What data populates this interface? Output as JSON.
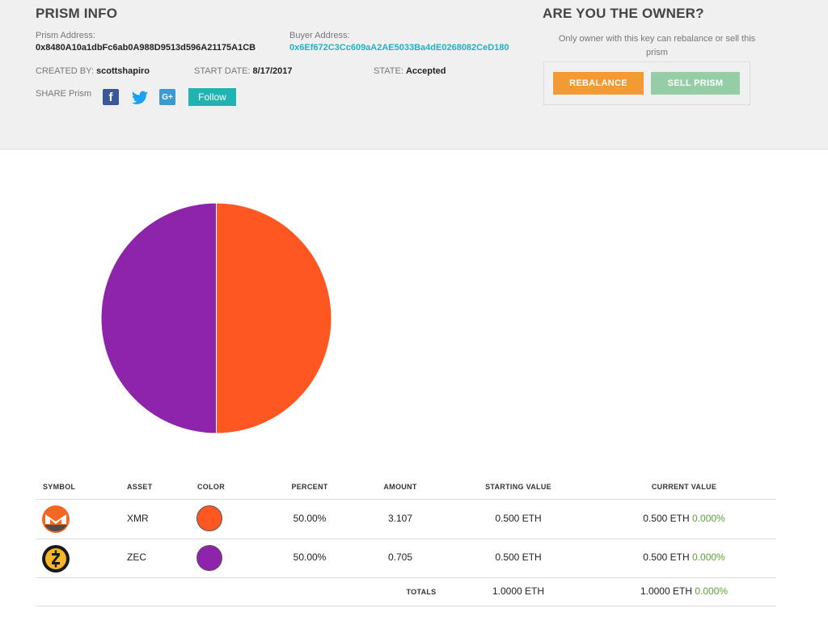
{
  "prism_info": {
    "title": "PRISM INFO",
    "prism_address_label": "Prism Address:",
    "prism_address": "0x8480A10a1dbFc6ab0A988D9513d596A21175A1CB",
    "buyer_address_label": "Buyer Address:",
    "buyer_address": "0x6Ef672C3Cc609aA2AE5033Ba4dE0268082CeD180",
    "created_by_label": "CREATED BY:",
    "created_by": "scottshapiro",
    "start_date_label": "START DATE:",
    "start_date": "8/17/2017",
    "state_label": "STATE:",
    "state": "Accepted",
    "share_label": "SHARE Prism",
    "share_icons": [
      "facebook-icon",
      "twitter-icon",
      "google-plus-icon"
    ],
    "google_plus_glyph": "G+",
    "follow_label": "Follow"
  },
  "owner": {
    "title": "ARE YOU THE OWNER?",
    "note": "Only owner with this key can rebalance or sell this prism",
    "rebalance_label": "REBALANCE",
    "sell_label": "SELL PRISM"
  },
  "chart_data": {
    "type": "pie",
    "slices": [
      {
        "label": "XMR",
        "value": 50.0,
        "color": "#ff5722"
      },
      {
        "label": "ZEC",
        "value": 50.0,
        "color": "#8e24aa"
      }
    ]
  },
  "table": {
    "headers": [
      "SYMBOL",
      "ASSET",
      "COLOR",
      "PERCENT",
      "AMOUNT",
      "STARTING VALUE",
      "CURRENT VALUE"
    ],
    "rows": [
      {
        "icon": "monero-icon",
        "asset": "XMR",
        "color": "#ff5722",
        "percent": "50.00%",
        "amount": "3.107",
        "starting_value": "0.500 ETH",
        "current_value": "0.500 ETH",
        "change": "0.000%"
      },
      {
        "icon": "zcash-icon",
        "asset": "ZEC",
        "color": "#8e24aa",
        "percent": "50.00%",
        "amount": "0.705",
        "starting_value": "0.500 ETH",
        "current_value": "0.500 ETH",
        "change": "0.000%"
      }
    ],
    "totals_label": "TOTALS",
    "total_starting": "1.0000 ETH",
    "total_current": "1.0000 ETH",
    "total_change": "0.000%"
  },
  "colors": {
    "positive": "#5aa33a",
    "link": "#1fb1c4",
    "rebalance": "#f19a36",
    "sell": "#95cda6",
    "follow": "#21b2b2"
  }
}
